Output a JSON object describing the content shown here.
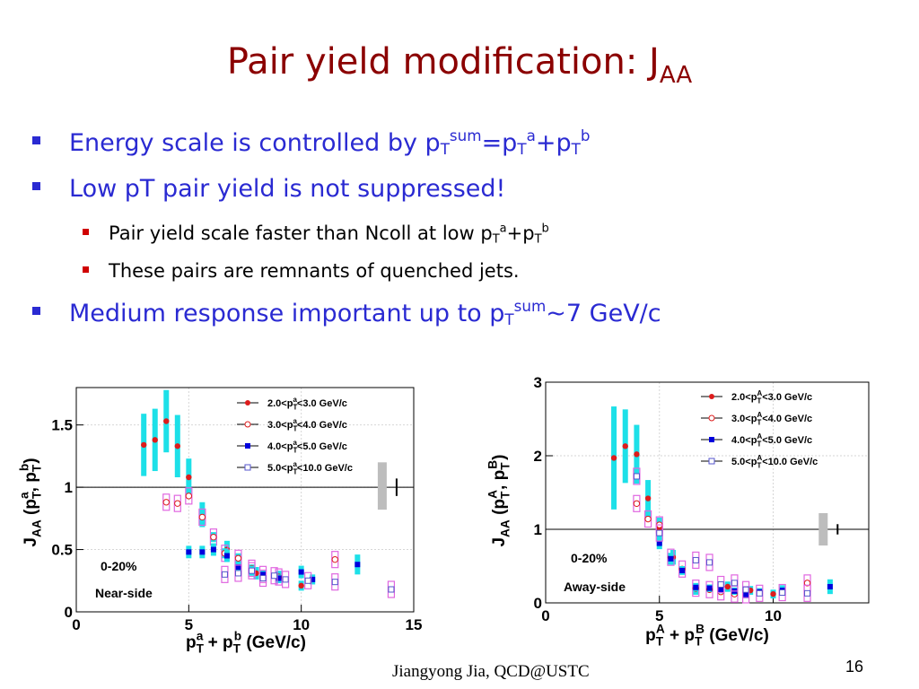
{
  "slide": {
    "title_main": "Pair yield modification: J",
    "title_sub": "AA",
    "page_number": "16",
    "footer": "Jiangyong Jia,  QCD@USTC"
  },
  "bullets": [
    {
      "level": 1,
      "parts": [
        [
          "t",
          "Energy scale is controlled by p"
        ],
        [
          "sub",
          "T"
        ],
        [
          "sup",
          "sum"
        ],
        [
          "t",
          "=p"
        ],
        [
          "sub",
          "T"
        ],
        [
          "sup",
          "a"
        ],
        [
          "t",
          "+p"
        ],
        [
          "sub",
          "T"
        ],
        [
          "sup",
          "b"
        ]
      ]
    },
    {
      "level": 1,
      "parts": [
        [
          "t",
          "Low pT pair yield is not suppressed!"
        ]
      ]
    },
    {
      "level": 2,
      "parts": [
        [
          "t",
          "Pair yield scale faster than Ncoll at low p"
        ],
        [
          "sub",
          "T"
        ],
        [
          "sup",
          "a"
        ],
        [
          "t",
          "+p"
        ],
        [
          "sub",
          "T"
        ],
        [
          "sup",
          "b"
        ]
      ]
    },
    {
      "level": 2,
      "parts": [
        [
          "t",
          "These pairs are remnants of quenched jets."
        ]
      ]
    },
    {
      "level": 1,
      "parts": [
        [
          "t",
          "Medium response important up to p"
        ],
        [
          "sub",
          "T"
        ],
        [
          "sup",
          "sum"
        ],
        [
          "t",
          "~7 GeV/c"
        ]
      ]
    }
  ],
  "chart_data": [
    {
      "type": "scatter",
      "panel_label": "Near-side",
      "centrality": "0-20%",
      "xlabel": "p_T^a + p_T^b (GeV/c)",
      "ylabel": "J_AA (p_T^a, p_T^b)",
      "xlim": [
        0,
        15
      ],
      "ylim": [
        0,
        1.8
      ],
      "xticks": [
        "0",
        "5",
        "10",
        "15"
      ],
      "yticks": [
        "0",
        "0.5",
        "1",
        "1.5"
      ],
      "reference_line": 1,
      "legend": [
        "2.0<p_T^a<3.0 GeV/c",
        "3.0<p_T^a<4.0 GeV/c",
        "4.0<p_T^a<5.0 GeV/c",
        "5.0<p_T^a<10.0 GeV/c"
      ],
      "series": [
        {
          "name": "2.0<p_T^a<3.0 GeV/c",
          "marker": "filled-circle",
          "color": "#dd1c1c",
          "x": [
            3.0,
            3.5,
            4.0,
            4.5,
            5.0,
            5.6,
            6.7,
            8.0,
            9.0,
            10.0
          ],
          "y": [
            1.34,
            1.38,
            1.53,
            1.33,
            1.08,
            0.78,
            0.5,
            0.31,
            0.28,
            0.21
          ],
          "err": [
            0.25,
            0.25,
            0.25,
            0.25,
            0.15,
            0.1,
            0.07,
            0.05,
            0.05,
            0.04
          ]
        },
        {
          "name": "3.0<p_T^a<4.0 GeV/c",
          "marker": "open-circle",
          "color": "#dd1c1c",
          "x": [
            4.0,
            4.5,
            5.0,
            5.6,
            6.1,
            6.6,
            7.2,
            7.8,
            8.3,
            9.0,
            11.5
          ],
          "y": [
            0.88,
            0.87,
            0.93,
            0.76,
            0.6,
            0.47,
            0.43,
            0.35,
            0.3,
            0.28,
            0.42
          ],
          "err": [
            0.0,
            0.0,
            0.0,
            0.05,
            0.04,
            0.04,
            0.04,
            0.03,
            0.03,
            0.03,
            0.0
          ]
        },
        {
          "name": "4.0<p_T^a<5.0 GeV/c",
          "marker": "filled-square",
          "color": "#0000dd",
          "x": [
            5.0,
            5.6,
            6.1,
            6.7,
            7.2,
            7.8,
            8.3,
            9.0,
            10.0,
            10.5,
            12.5
          ],
          "y": [
            0.48,
            0.48,
            0.5,
            0.45,
            0.36,
            0.33,
            0.3,
            0.27,
            0.32,
            0.26,
            0.38
          ],
          "err": [
            0.05,
            0.05,
            0.05,
            0.05,
            0.04,
            0.04,
            0.03,
            0.03,
            0.05,
            0.04,
            0.08
          ]
        },
        {
          "name": "5.0<p_T^a<10.0 GeV/c",
          "marker": "open-square",
          "color": "#5555cc",
          "x": [
            6.6,
            7.2,
            7.8,
            8.3,
            8.8,
            9.3,
            10.3,
            11.5,
            14.0
          ],
          "y": [
            0.3,
            0.31,
            0.33,
            0.27,
            0.29,
            0.26,
            0.25,
            0.24,
            0.18
          ],
          "err": [
            0.0,
            0.0,
            0.0,
            0.0,
            0.0,
            0.0,
            0.0,
            0.0,
            0.0
          ]
        }
      ],
      "global_uncertainty": {
        "x": 13.6,
        "y": [
          0.82,
          1.2
        ]
      }
    },
    {
      "type": "scatter",
      "panel_label": "Away-side",
      "centrality": "0-20%",
      "xlabel": "p_T^A + p_T^B (GeV/c)",
      "ylabel": "J_AA (p_T^A, p_T^B)",
      "xlim": [
        0,
        14.2
      ],
      "ylim": [
        0,
        3
      ],
      "xticks": [
        "0",
        "5",
        "10"
      ],
      "yticks": [
        "0",
        "1",
        "2",
        "3"
      ],
      "reference_line": 1,
      "legend": [
        "2.0<p_T^A<3.0 GeV/c",
        "3.0<p_T^A<4.0 GeV/c",
        "4.0<p_T^A<5.0 GeV/c",
        "5.0<p_T^A<10.0 GeV/c"
      ],
      "series": [
        {
          "name": "2.0<p_T^A<3.0 GeV/c",
          "marker": "filled-circle",
          "color": "#dd1c1c",
          "x": [
            3.0,
            3.5,
            4.0,
            4.5,
            5.0,
            5.6,
            6.6,
            8.0,
            9.0,
            10.0
          ],
          "y": [
            1.97,
            2.13,
            2.02,
            1.42,
            1.01,
            0.62,
            0.19,
            0.22,
            0.17,
            0.12
          ],
          "err": [
            0.7,
            0.5,
            0.4,
            0.25,
            0.15,
            0.1,
            0.08,
            0.07,
            0.06,
            0.06
          ]
        },
        {
          "name": "3.0<p_T^A<4.0 GeV/c",
          "marker": "open-circle",
          "color": "#dd1c1c",
          "x": [
            4.0,
            4.5,
            5.0,
            5.5,
            6.0,
            6.6,
            7.2,
            7.7,
            8.3,
            8.8,
            11.5
          ],
          "y": [
            1.35,
            1.14,
            1.06,
            0.62,
            0.46,
            0.2,
            0.18,
            0.15,
            0.12,
            0.11,
            0.27
          ],
          "err": [
            0,
            0,
            0,
            0,
            0,
            0,
            0,
            0,
            0,
            0,
            0
          ]
        },
        {
          "name": "4.0<p_T^A<5.0 GeV/c",
          "marker": "filled-square",
          "color": "#0000dd",
          "x": [
            5.0,
            5.5,
            6.0,
            6.6,
            7.2,
            7.7,
            8.3,
            8.8,
            9.4,
            10.4,
            12.5
          ],
          "y": [
            0.81,
            0.6,
            0.44,
            0.21,
            0.2,
            0.18,
            0.16,
            0.11,
            0.15,
            0.17,
            0.22
          ],
          "err": [
            0.08,
            0.08,
            0.06,
            0.05,
            0.05,
            0.05,
            0.05,
            0.05,
            0.05,
            0.07,
            0.1
          ]
        },
        {
          "name": "5.0<p_T^A<10.0 GeV/c",
          "marker": "open-square",
          "color": "#5555cc",
          "x": [
            4.0,
            5.0,
            6.6,
            7.2,
            7.7,
            8.3,
            8.8,
            9.4,
            10.4,
            11.5
          ],
          "y": [
            1.72,
            0.95,
            0.58,
            0.55,
            0.25,
            0.27,
            0.18,
            0.13,
            0.14,
            0.13
          ],
          "err": [
            0,
            0,
            0,
            0,
            0,
            0,
            0,
            0,
            0,
            0
          ]
        }
      ],
      "global_uncertainty": {
        "x": 12.2,
        "y": [
          0.78,
          1.22
        ]
      }
    }
  ]
}
